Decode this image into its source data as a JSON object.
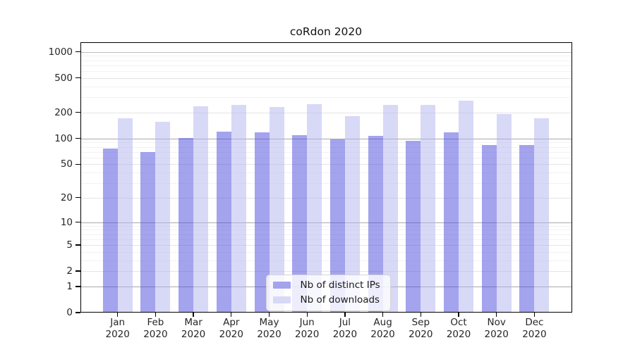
{
  "title": "coRdon 2020",
  "chart_data": {
    "type": "bar",
    "title": "coRdon 2020",
    "categories": [
      "Jan",
      "Feb",
      "Mar",
      "Apr",
      "May",
      "Jun",
      "Jul",
      "Aug",
      "Sep",
      "Oct",
      "Nov",
      "Dec"
    ],
    "year_label": "2020",
    "series": [
      {
        "name": "Nb of distinct IPs",
        "values": [
          77,
          70,
          101,
          120,
          118,
          110,
          98,
          107,
          94,
          118,
          84,
          84
        ],
        "color": "#a3a3ee",
        "fill": "rgba(71,71,222,0.5)"
      },
      {
        "name": "Nb of downloads",
        "values": [
          171,
          156,
          236,
          245,
          232,
          249,
          181,
          244,
          245,
          272,
          192,
          172
        ],
        "color": "#d8d8f7",
        "fill": "rgba(177,177,239,0.5)"
      }
    ],
    "yticks": [
      0,
      1,
      2,
      5,
      10,
      20,
      50,
      100,
      200,
      500,
      1000
    ],
    "scale": "log1p",
    "ylim": [
      0,
      1300
    ],
    "grid": true,
    "legend_position": "bottom-center"
  }
}
